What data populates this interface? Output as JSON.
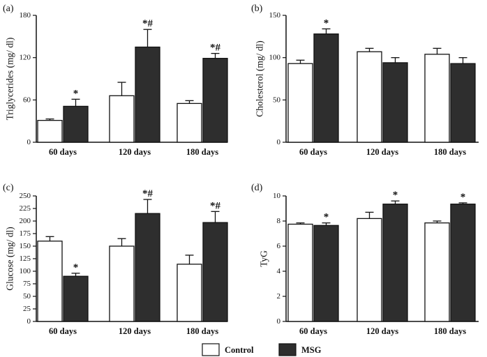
{
  "colors": {
    "control": "#ffffff",
    "msg": "#2e2e2e",
    "stroke": "#111111"
  },
  "legend": {
    "control": "Control",
    "msg": "MSG"
  },
  "chart_data": [
    {
      "panel": "(a)",
      "type": "bar",
      "ylabel": "Triglycerides (mg/ dl)",
      "ylim": [
        0,
        180
      ],
      "yticks": [
        0,
        60,
        120,
        180
      ],
      "categories": [
        "60 days",
        "120 days",
        "180 days"
      ],
      "series": [
        {
          "name": "Control",
          "values": [
            31,
            66,
            55
          ],
          "errors": [
            2,
            19,
            4
          ],
          "annotations": [
            "",
            "",
            ""
          ]
        },
        {
          "name": "MSG",
          "values": [
            51,
            135,
            119
          ],
          "errors": [
            10,
            25,
            7
          ],
          "annotations": [
            "*",
            "*#",
            "*#"
          ]
        }
      ]
    },
    {
      "panel": "(b)",
      "type": "bar",
      "ylabel": "Cholesterol (mg/ dl)",
      "ylim": [
        0,
        150
      ],
      "yticks": [
        0,
        50,
        100,
        150
      ],
      "categories": [
        "60 days",
        "120 days",
        "180 days"
      ],
      "series": [
        {
          "name": "Control",
          "values": [
            93,
            107,
            104
          ],
          "errors": [
            4,
            4,
            7
          ],
          "annotations": [
            "",
            "",
            ""
          ]
        },
        {
          "name": "MSG",
          "values": [
            128,
            94,
            93
          ],
          "errors": [
            6,
            6,
            7
          ],
          "annotations": [
            "*",
            "",
            ""
          ]
        }
      ]
    },
    {
      "panel": "(c)",
      "type": "bar",
      "ylabel": "Glucose (mg/ dl)",
      "ylim": [
        0,
        250
      ],
      "yticks": [
        0,
        25,
        50,
        75,
        100,
        125,
        150,
        175,
        200,
        225,
        250
      ],
      "categories": [
        "60 days",
        "120 days",
        "180 days"
      ],
      "series": [
        {
          "name": "Control",
          "values": [
            160,
            150,
            114
          ],
          "errors": [
            9,
            15,
            18
          ],
          "annotations": [
            "",
            "",
            ""
          ]
        },
        {
          "name": "MSG",
          "values": [
            90,
            215,
            197
          ],
          "errors": [
            6,
            28,
            22
          ],
          "annotations": [
            "*",
            "*#",
            "*#"
          ]
        }
      ]
    },
    {
      "panel": "(d)",
      "type": "bar",
      "ylabel": "TyG",
      "ylim": [
        0,
        10
      ],
      "yticks": [
        0,
        2,
        4,
        6,
        8,
        10
      ],
      "categories": [
        "60 days",
        "120 days",
        "180 days"
      ],
      "series": [
        {
          "name": "Control",
          "values": [
            7.75,
            8.2,
            7.85
          ],
          "errors": [
            0.1,
            0.5,
            0.15
          ],
          "annotations": [
            "",
            "",
            ""
          ]
        },
        {
          "name": "MSG",
          "values": [
            7.65,
            9.35,
            9.35
          ],
          "errors": [
            0.2,
            0.25,
            0.1
          ],
          "annotations": [
            "*",
            "*",
            "*"
          ]
        }
      ]
    }
  ]
}
